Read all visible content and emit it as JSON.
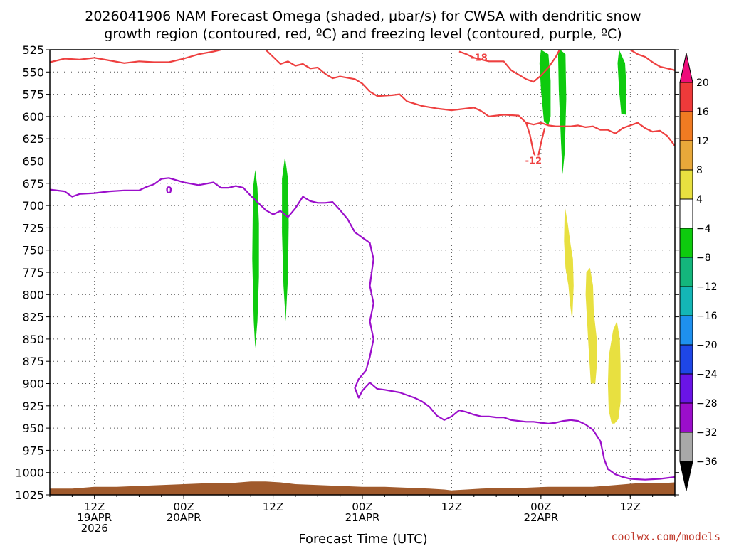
{
  "title": {
    "line1": "2026041906 NAM Forecast Omega (shaded, μbar/s) for CWSA with dendritic snow",
    "line2": "growth region (contoured, red, ºC) and freezing level (contoured, purple, ºC)"
  },
  "xlabel": "Forecast Time (UTC)",
  "credit": "coolwx.com/models",
  "chart_data": {
    "type": "time-height",
    "ylabel": "",
    "y_levels": [
      525,
      550,
      575,
      600,
      625,
      650,
      675,
      700,
      725,
      750,
      775,
      800,
      825,
      850,
      875,
      900,
      925,
      950,
      975,
      1000,
      1025
    ],
    "y_inverted": true,
    "grid": true,
    "x_hour_range": [
      0,
      84
    ],
    "x_ticks": [
      {
        "hour": 6,
        "lines": [
          "12Z",
          "19APR",
          "2026"
        ]
      },
      {
        "hour": 18,
        "lines": [
          "00Z",
          "20APR"
        ]
      },
      {
        "hour": 30,
        "lines": [
          "12Z"
        ]
      },
      {
        "hour": 42,
        "lines": [
          "00Z",
          "21APR"
        ]
      },
      {
        "hour": 54,
        "lines": [
          "12Z"
        ]
      },
      {
        "hour": 66,
        "lines": [
          "00Z",
          "22APR"
        ]
      },
      {
        "hour": 78,
        "lines": [
          "12Z"
        ]
      }
    ],
    "colorbar": {
      "labels": [
        "20",
        "16",
        "12",
        "8",
        "4",
        "−4",
        "−8",
        "−12",
        "−16",
        "−20",
        "−24",
        "−28",
        "−32",
        "−36"
      ],
      "colors": [
        "#ee0c7a",
        "#ee3a3a",
        "#f07b22",
        "#e8a83a",
        "#e8e040",
        "#ffffff",
        "#0ecb0e",
        "#14b67c",
        "#14b6b6",
        "#1e90ee",
        "#1e46e6",
        "#6a14e6",
        "#9b0ecb",
        "#a8a8a8",
        "#000000"
      ]
    },
    "contours": {
      "dendritic_minus18": {
        "color": "#ee4040",
        "label": "-18",
        "points": [
          [
            0,
            539
          ],
          [
            2,
            535
          ],
          [
            4,
            536
          ],
          [
            6,
            534
          ],
          [
            8,
            537
          ],
          [
            10,
            540
          ],
          [
            12,
            538
          ],
          [
            14,
            539
          ],
          [
            16,
            539
          ],
          [
            18,
            535
          ],
          [
            20,
            530
          ],
          [
            22,
            527
          ],
          [
            23,
            525
          ]
        ],
        "label_at": [
          57.7,
          534
        ]
      },
      "dendritic_minus18_b": {
        "color": "#ee4040",
        "points": [
          [
            29,
            525
          ],
          [
            30,
            533
          ],
          [
            31,
            541
          ],
          [
            32,
            538
          ],
          [
            33,
            543
          ],
          [
            34,
            541
          ],
          [
            35,
            546
          ],
          [
            36,
            545
          ],
          [
            37,
            552
          ],
          [
            38,
            557
          ],
          [
            39,
            555
          ],
          [
            41,
            558
          ],
          [
            42,
            563
          ],
          [
            43,
            572
          ],
          [
            44,
            577
          ],
          [
            46,
            576
          ],
          [
            47,
            575
          ],
          [
            48,
            583
          ],
          [
            50,
            588
          ],
          [
            52,
            591
          ],
          [
            54,
            593
          ],
          [
            55,
            592
          ],
          [
            57,
            590
          ],
          [
            58,
            594
          ],
          [
            59,
            600
          ],
          [
            61,
            598
          ],
          [
            63,
            599
          ],
          [
            64,
            607
          ],
          [
            65,
            609
          ],
          [
            66,
            607
          ],
          [
            67,
            610
          ],
          [
            68,
            611
          ],
          [
            70,
            611
          ],
          [
            71,
            610
          ],
          [
            72,
            612
          ],
          [
            73,
            611
          ],
          [
            74,
            615
          ],
          [
            75,
            615
          ],
          [
            76,
            619
          ],
          [
            77,
            613
          ],
          [
            78,
            610
          ],
          [
            79,
            607
          ],
          [
            80,
            613
          ],
          [
            81,
            617
          ],
          [
            82,
            616
          ],
          [
            83,
            622
          ],
          [
            84,
            633
          ]
        ],
        "label_at": [
          44,
          577
        ]
      },
      "dendritic_right": {
        "color": "#ee4040",
        "points": [
          [
            55,
            527
          ],
          [
            56,
            530
          ],
          [
            57,
            534
          ],
          [
            59,
            538
          ],
          [
            61,
            538
          ],
          [
            62,
            548
          ],
          [
            64,
            558
          ],
          [
            65,
            561
          ],
          [
            66,
            554
          ],
          [
            67,
            545
          ],
          [
            68,
            533
          ],
          [
            68.5,
            525
          ]
        ]
      },
      "dendritic_right2": {
        "color": "#ee4040",
        "points": [
          [
            78,
            525
          ],
          [
            79,
            530
          ],
          [
            80,
            533
          ],
          [
            81,
            539
          ],
          [
            82,
            544
          ],
          [
            84,
            548
          ]
        ]
      },
      "dendritic_minus12_hook": {
        "color": "#ee4040",
        "label": "-12",
        "points": [
          [
            64,
            607
          ],
          [
            64.5,
            620
          ],
          [
            65,
            640
          ],
          [
            65.5,
            650
          ],
          [
            66,
            630
          ],
          [
            66.5,
            613
          ]
        ],
        "label_at": [
          65,
          650
        ]
      },
      "freezing_zero": {
        "color": "#9b0ecb",
        "label": "0",
        "points": [
          [
            0,
            682
          ],
          [
            2,
            684
          ],
          [
            3,
            690
          ],
          [
            4,
            687
          ],
          [
            6,
            686
          ],
          [
            8,
            684
          ],
          [
            10,
            683
          ],
          [
            12,
            683
          ],
          [
            13,
            679
          ],
          [
            14,
            676
          ],
          [
            15,
            670
          ],
          [
            16,
            669
          ],
          [
            18,
            674
          ],
          [
            20,
            677
          ],
          [
            22,
            674
          ],
          [
            23,
            680
          ],
          [
            24,
            680
          ],
          [
            25,
            678
          ],
          [
            26,
            680
          ],
          [
            27,
            689
          ],
          [
            28,
            697
          ],
          [
            29,
            705
          ],
          [
            30,
            710
          ],
          [
            31,
            706
          ],
          [
            32,
            713
          ],
          [
            33,
            703
          ],
          [
            34,
            690
          ],
          [
            35,
            695
          ],
          [
            36,
            697
          ],
          [
            37,
            697
          ],
          [
            38,
            696
          ],
          [
            39,
            705
          ],
          [
            40,
            715
          ],
          [
            41,
            730
          ],
          [
            42,
            736
          ],
          [
            43,
            742
          ],
          [
            43.5,
            760
          ],
          [
            43,
            790
          ],
          [
            43.5,
            810
          ],
          [
            43,
            830
          ],
          [
            43.5,
            850
          ],
          [
            43,
            870
          ],
          [
            42.5,
            885
          ],
          [
            41.5,
            895
          ],
          [
            41,
            905
          ],
          [
            41.5,
            916
          ],
          [
            42,
            908
          ],
          [
            43,
            899
          ],
          [
            44,
            906
          ],
          [
            45,
            907
          ],
          [
            47,
            910
          ],
          [
            49,
            916
          ],
          [
            50,
            920
          ],
          [
            51,
            926
          ],
          [
            52,
            936
          ],
          [
            53,
            941
          ],
          [
            54,
            937
          ],
          [
            55,
            930
          ],
          [
            56,
            932
          ],
          [
            57,
            935
          ],
          [
            58,
            937
          ],
          [
            59,
            937
          ],
          [
            60,
            938
          ],
          [
            61,
            938
          ],
          [
            62,
            941
          ],
          [
            63,
            942
          ],
          [
            64,
            943
          ],
          [
            65,
            943
          ],
          [
            66,
            944
          ],
          [
            67,
            945
          ],
          [
            68,
            944
          ],
          [
            69,
            942
          ],
          [
            70,
            941
          ],
          [
            71,
            942
          ],
          [
            72,
            946
          ],
          [
            73,
            952
          ],
          [
            74,
            965
          ],
          [
            74.5,
            985
          ],
          [
            75,
            996
          ],
          [
            76,
            1002
          ],
          [
            77,
            1005
          ],
          [
            78,
            1007
          ],
          [
            80,
            1008
          ],
          [
            82,
            1007
          ],
          [
            84,
            1005
          ]
        ],
        "label_at": [
          16,
          683
        ]
      }
    },
    "shaded_regions": [
      {
        "name": "omega-green-1",
        "value_range": [
          -8,
          -4
        ],
        "color": "#0ecb0e",
        "points": [
          [
            27.3,
            680
          ],
          [
            27.6,
            660
          ],
          [
            27.9,
            680
          ],
          [
            28.1,
            720
          ],
          [
            28.1,
            780
          ],
          [
            27.9,
            830
          ],
          [
            27.6,
            860
          ],
          [
            27.4,
            830
          ],
          [
            27.2,
            760
          ]
        ]
      },
      {
        "name": "omega-green-2",
        "value_range": [
          -8,
          -4
        ],
        "color": "#0ecb0e",
        "points": [
          [
            31.2,
            670
          ],
          [
            31.6,
            645
          ],
          [
            32.0,
            670
          ],
          [
            32.1,
            720
          ],
          [
            32.0,
            780
          ],
          [
            31.7,
            830
          ],
          [
            31.4,
            790
          ],
          [
            31.2,
            730
          ]
        ]
      },
      {
        "name": "omega-green-3",
        "value_range": [
          -8,
          -4
        ],
        "color": "#0ecb0e",
        "points": [
          [
            66.0,
            525
          ],
          [
            67.0,
            530
          ],
          [
            67.3,
            560
          ],
          [
            67.3,
            600
          ],
          [
            67.0,
            610
          ],
          [
            66.4,
            605
          ],
          [
            66.0,
            570
          ],
          [
            65.8,
            540
          ]
        ]
      },
      {
        "name": "omega-green-4",
        "value_range": [
          -8,
          -4
        ],
        "color": "#0ecb0e",
        "points": [
          [
            68.6,
            525
          ],
          [
            69.3,
            530
          ],
          [
            69.4,
            580
          ],
          [
            69.2,
            640
          ],
          [
            68.9,
            665
          ],
          [
            68.7,
            630
          ],
          [
            68.4,
            570
          ],
          [
            68.3,
            530
          ]
        ]
      },
      {
        "name": "omega-green-5",
        "value_range": [
          -8,
          -4
        ],
        "color": "#0ecb0e",
        "points": [
          [
            76.5,
            525
          ],
          [
            77.3,
            540
          ],
          [
            77.5,
            570
          ],
          [
            77.4,
            598
          ],
          [
            76.8,
            597
          ],
          [
            76.5,
            570
          ],
          [
            76.3,
            540
          ]
        ]
      },
      {
        "name": "omega-yellow-1",
        "value_range": [
          4,
          8
        ],
        "color": "#e8e040",
        "points": [
          [
            69.2,
            700
          ],
          [
            69.6,
            720
          ],
          [
            70.0,
            745
          ],
          [
            70.3,
            760
          ],
          [
            70.4,
            790
          ],
          [
            70.2,
            830
          ],
          [
            69.9,
            810
          ],
          [
            69.7,
            790
          ],
          [
            69.3,
            770
          ],
          [
            69.1,
            740
          ]
        ]
      },
      {
        "name": "omega-yellow-2",
        "value_range": [
          4,
          8
        ],
        "color": "#e8e040",
        "points": [
          [
            72.1,
            775
          ],
          [
            72.6,
            770
          ],
          [
            73.0,
            790
          ],
          [
            73.1,
            820
          ],
          [
            73.5,
            850
          ],
          [
            73.5,
            880
          ],
          [
            73.3,
            900
          ],
          [
            72.7,
            900
          ],
          [
            72.4,
            860
          ],
          [
            72.2,
            830
          ],
          [
            72.0,
            800
          ]
        ]
      },
      {
        "name": "omega-yellow-3",
        "value_range": [
          4,
          8
        ],
        "color": "#e8e040",
        "points": [
          [
            75.7,
            840
          ],
          [
            76.2,
            830
          ],
          [
            76.6,
            850
          ],
          [
            76.7,
            880
          ],
          [
            76.7,
            920
          ],
          [
            76.4,
            940
          ],
          [
            75.9,
            945
          ],
          [
            75.5,
            945
          ],
          [
            75.1,
            930
          ],
          [
            75.0,
            900
          ],
          [
            75.1,
            870
          ],
          [
            75.4,
            855
          ]
        ]
      }
    ],
    "terrain": {
      "color": "#a05a2c",
      "top_points": [
        [
          0,
          1018
        ],
        [
          3,
          1018
        ],
        [
          6,
          1016
        ],
        [
          9,
          1016
        ],
        [
          12,
          1015
        ],
        [
          15,
          1014
        ],
        [
          18,
          1013
        ],
        [
          21,
          1012
        ],
        [
          24,
          1012
        ],
        [
          27,
          1010
        ],
        [
          29,
          1010
        ],
        [
          31,
          1011
        ],
        [
          33,
          1013
        ],
        [
          36,
          1014
        ],
        [
          39,
          1015
        ],
        [
          42,
          1016
        ],
        [
          45,
          1016
        ],
        [
          48,
          1017
        ],
        [
          51,
          1018
        ],
        [
          53,
          1019
        ],
        [
          54,
          1020
        ],
        [
          56,
          1019
        ],
        [
          58,
          1018
        ],
        [
          61,
          1017
        ],
        [
          64,
          1017
        ],
        [
          67,
          1016
        ],
        [
          70,
          1016
        ],
        [
          73,
          1016
        ],
        [
          76,
          1014
        ],
        [
          79,
          1012
        ],
        [
          82,
          1012
        ],
        [
          84,
          1011
        ]
      ]
    }
  }
}
